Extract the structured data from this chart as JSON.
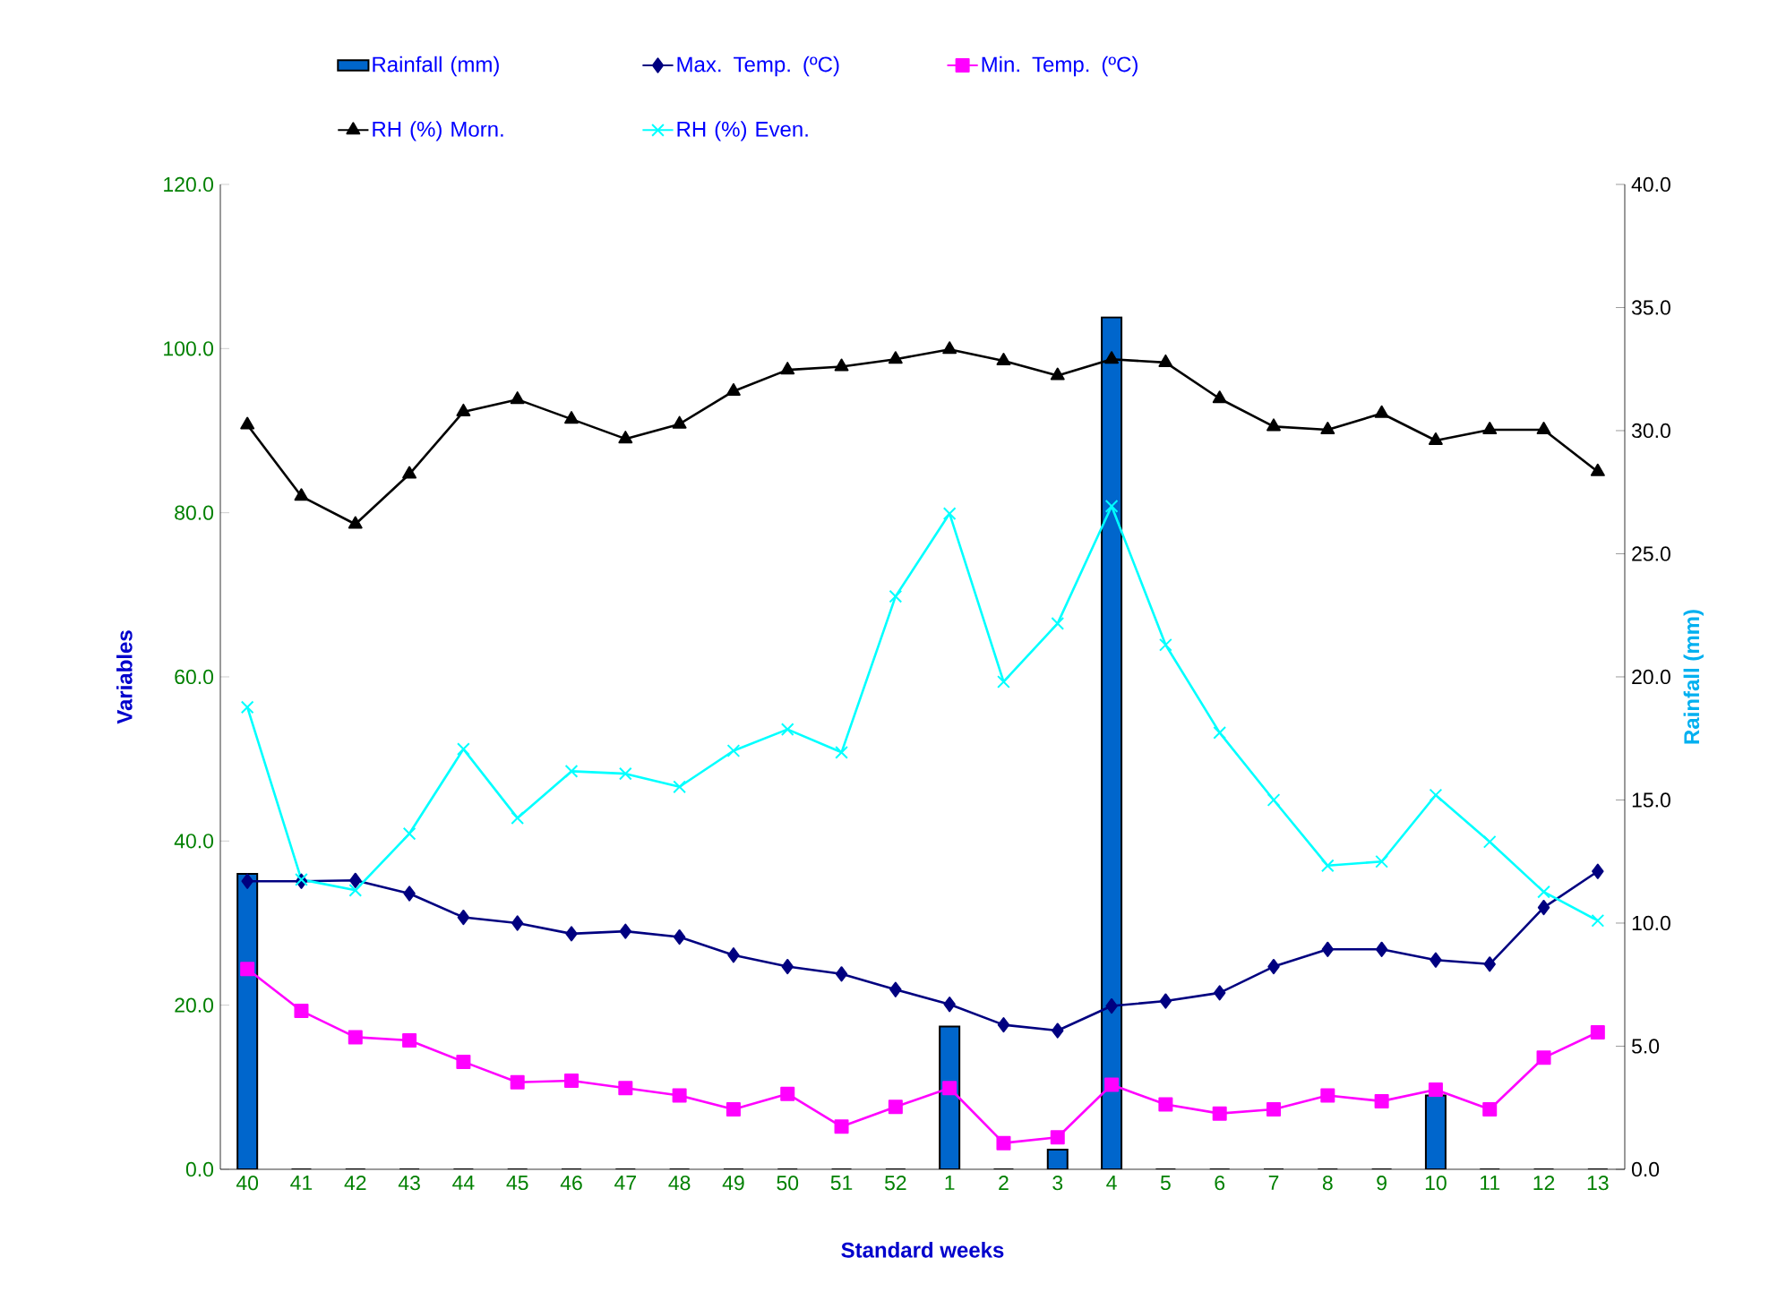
{
  "chart_data": {
    "type": "line",
    "xlabel": "Standard weeks",
    "ylabel": "Variables",
    "y2label": "Rainfall (mm)",
    "categories": [
      "40",
      "41",
      "42",
      "43",
      "44",
      "45",
      "46",
      "47",
      "48",
      "49",
      "50",
      "51",
      "52",
      "1",
      "2",
      "3",
      "4",
      "5",
      "6",
      "7",
      "8",
      "9",
      "10",
      "11",
      "12",
      "13"
    ],
    "series": [
      {
        "name": "Rainfall (mm)",
        "type": "bar",
        "axis": "y2",
        "color": "#0066cc",
        "values": [
          12.0,
          0,
          0,
          0,
          0,
          0,
          0,
          0,
          0,
          0,
          0,
          0,
          0,
          5.8,
          0,
          0.8,
          34.6,
          0,
          0,
          0,
          0,
          0,
          3.0,
          0,
          0,
          0
        ]
      },
      {
        "name": "Max. Temp. (ºC)",
        "color": "#000080",
        "marker": "diamond",
        "values": [
          35.1,
          35.1,
          35.2,
          33.6,
          30.7,
          30.0,
          28.7,
          29.0,
          28.3,
          26.1,
          24.7,
          23.8,
          21.9,
          20.1,
          17.6,
          16.9,
          19.9,
          20.5,
          21.5,
          24.7,
          26.8,
          26.8,
          25.5,
          25.0,
          31.9,
          36.3
        ]
      },
      {
        "name": "Min. Temp. (ºC)",
        "color": "#ff00ff",
        "marker": "square",
        "values": [
          24.4,
          19.3,
          16.1,
          15.7,
          13.1,
          10.6,
          10.8,
          9.9,
          9.0,
          7.3,
          9.2,
          5.2,
          7.6,
          9.9,
          3.2,
          3.9,
          10.3,
          7.9,
          6.8,
          7.3,
          9.0,
          8.3,
          9.7,
          7.3,
          13.6,
          16.7
        ]
      },
      {
        "name": "RH (%) Morn.",
        "color": "#000000",
        "marker": "triangle",
        "values": [
          90.7,
          82.0,
          78.6,
          84.7,
          92.3,
          93.8,
          91.4,
          89.0,
          90.8,
          94.8,
          97.4,
          97.8,
          98.7,
          99.9,
          98.5,
          96.7,
          98.7,
          98.3,
          93.9,
          90.5,
          90.1,
          92.1,
          88.8,
          90.1,
          90.1,
          85.0
        ]
      },
      {
        "name": "RH (%) Even.",
        "color": "#00ffff",
        "marker": "cross",
        "values": [
          56.3,
          35.3,
          34.0,
          40.9,
          51.2,
          42.8,
          48.5,
          48.2,
          46.6,
          51.0,
          53.6,
          50.8,
          69.8,
          79.9,
          59.4,
          66.5,
          80.8,
          63.9,
          53.2,
          45.0,
          37.0,
          37.5,
          45.6,
          39.9,
          33.8,
          30.3
        ]
      }
    ],
    "ylim": [
      0,
      120
    ],
    "yticks": [
      {
        "value": 0,
        "label": "0.0"
      },
      {
        "value": 20,
        "label": "20.0"
      },
      {
        "value": 40,
        "label": "40.0"
      },
      {
        "value": 60,
        "label": "60.0"
      },
      {
        "value": 80,
        "label": "80.0"
      },
      {
        "value": 100,
        "label": "100.0"
      },
      {
        "value": 120,
        "label": "120.0"
      }
    ],
    "y2lim": [
      0,
      40
    ],
    "y2ticks": [
      {
        "value": 0,
        "label": "0.0"
      },
      {
        "value": 5,
        "label": "5.0"
      },
      {
        "value": 10,
        "label": "10.0"
      },
      {
        "value": 15,
        "label": "15.0"
      },
      {
        "value": 20,
        "label": "20.0"
      },
      {
        "value": 25,
        "label": "25.0"
      },
      {
        "value": 30,
        "label": "30.0"
      },
      {
        "value": 35,
        "label": "35.0"
      },
      {
        "value": 40,
        "label": "40.0"
      }
    ],
    "grid": false,
    "legend": "top"
  }
}
